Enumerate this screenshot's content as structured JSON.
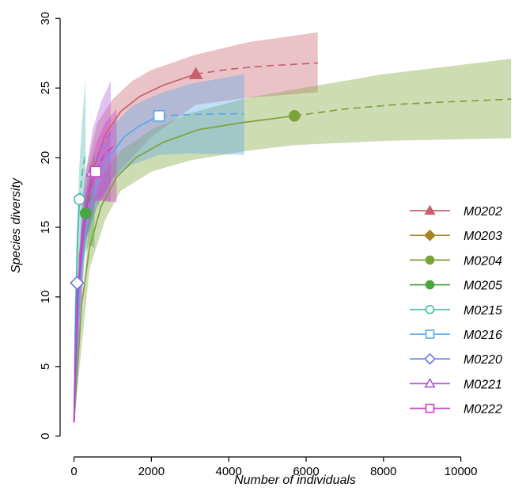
{
  "chart_data": {
    "type": "line",
    "title": "",
    "xlabel": "Number of individuals",
    "ylabel": "Species diversity",
    "xlim": [
      -400,
      11500
    ],
    "ylim": [
      -0.3,
      30.3
    ],
    "x_ticks": [
      0,
      2000,
      4000,
      6000,
      8000,
      10000
    ],
    "y_ticks": [
      0,
      5,
      10,
      15,
      20,
      25,
      30
    ],
    "grid": false,
    "legend_position": "right",
    "series": [
      {
        "name": "M0202",
        "color": "#c9606e",
        "marker": "triangle-filled",
        "observed": {
          "x": 3150,
          "y": 26
        },
        "interpolated": [
          [
            0,
            1
          ],
          [
            150,
            13
          ],
          [
            300,
            16.5
          ],
          [
            500,
            19.2
          ],
          [
            800,
            21.6
          ],
          [
            1200,
            23.3
          ],
          [
            1700,
            24.4
          ],
          [
            2300,
            25.2
          ],
          [
            3150,
            26
          ]
        ],
        "extrapolated": [
          [
            3150,
            26
          ],
          [
            4000,
            26.35
          ],
          [
            5000,
            26.6
          ],
          [
            6300,
            26.8
          ]
        ],
        "band": {
          "x": [
            0,
            300,
            600,
            1000,
            1500,
            2000,
            3150,
            4500,
            6300
          ],
          "lower": [
            1,
            14,
            16.5,
            18.5,
            20,
            21.5,
            23.8,
            24.3,
            24.7
          ],
          "upper": [
            1,
            19,
            22.5,
            24.2,
            25.5,
            26.3,
            27.4,
            28.3,
            29
          ]
        }
      },
      {
        "name": "M0203",
        "color": "#a88328",
        "marker": "diamond-filled",
        "observed": null,
        "interpolated": [],
        "extrapolated": [],
        "band": null
      },
      {
        "name": "M0204",
        "color": "#7ea23a",
        "marker": "circle-filled",
        "observed": {
          "x": 5700,
          "y": 23
        },
        "interpolated": [
          [
            0,
            1
          ],
          [
            200,
            9.5
          ],
          [
            400,
            13.5
          ],
          [
            700,
            16.5
          ],
          [
            1100,
            18.6
          ],
          [
            1600,
            20
          ],
          [
            2300,
            21.1
          ],
          [
            3200,
            22
          ],
          [
            4300,
            22.5
          ],
          [
            5700,
            23
          ]
        ],
        "extrapolated": [
          [
            5700,
            23
          ],
          [
            7000,
            23.5
          ],
          [
            8500,
            23.85
          ],
          [
            10000,
            24.05
          ],
          [
            11300,
            24.2
          ]
        ],
        "band": {
          "x": [
            0,
            400,
            800,
            1200,
            2000,
            3000,
            4500,
            5700,
            8000,
            11300
          ],
          "lower": [
            1,
            12,
            15.5,
            17.6,
            19,
            19.8,
            20.5,
            20.9,
            21.2,
            21.4
          ],
          "upper": [
            1,
            16,
            19,
            20.5,
            22,
            23.2,
            24.3,
            24.9,
            26,
            27.1
          ]
        }
      },
      {
        "name": "M0205",
        "color": "#4aa640",
        "marker": "circle-filled",
        "observed": {
          "x": 300,
          "y": 16
        },
        "interpolated": [
          [
            0,
            1
          ],
          [
            60,
            7
          ],
          [
            130,
            11
          ],
          [
            200,
            13.6
          ],
          [
            300,
            16
          ]
        ],
        "extrapolated": [
          [
            300,
            16
          ],
          [
            400,
            17
          ],
          [
            530,
            17.6
          ]
        ],
        "band": {
          "x": [
            0,
            120,
            250,
            400,
            530
          ],
          "lower": [
            1,
            9,
            13,
            13.8,
            13.5
          ],
          "upper": [
            1,
            13,
            17,
            19.5,
            20.5
          ]
        }
      },
      {
        "name": "M0215",
        "color": "#4ab7aa",
        "marker": "circle-open",
        "observed": {
          "x": 140,
          "y": 17
        },
        "interpolated": [
          [
            0,
            1
          ],
          [
            40,
            9
          ],
          [
            90,
            14
          ],
          [
            140,
            17
          ]
        ],
        "extrapolated": [
          [
            140,
            17
          ],
          [
            220,
            19
          ],
          [
            300,
            20.4
          ]
        ],
        "band": {
          "x": [
            0,
            60,
            140,
            220,
            300
          ],
          "lower": [
            1,
            8,
            13,
            15,
            16.3
          ],
          "upper": [
            1,
            14,
            19.5,
            23,
            25.7
          ]
        }
      },
      {
        "name": "M0216",
        "color": "#5aa8e8",
        "marker": "square-open",
        "observed": {
          "x": 2200,
          "y": 23
        },
        "interpolated": [
          [
            0,
            1
          ],
          [
            150,
            11
          ],
          [
            350,
            15.5
          ],
          [
            600,
            18.3
          ],
          [
            900,
            20
          ],
          [
            1300,
            21.5
          ],
          [
            1700,
            22.3
          ],
          [
            2200,
            23
          ]
        ],
        "extrapolated": [
          [
            2200,
            23
          ],
          [
            3000,
            23.1
          ],
          [
            3800,
            23.15
          ],
          [
            4400,
            23.15
          ]
        ],
        "band": {
          "x": [
            0,
            300,
            600,
            1000,
            1500,
            2200,
            3000,
            4400
          ],
          "lower": [
            1,
            14,
            16.5,
            18.5,
            19.5,
            20.2,
            20.3,
            20.2
          ],
          "upper": [
            1,
            17,
            20,
            22.3,
            23.7,
            24.6,
            25.3,
            26
          ]
        }
      },
      {
        "name": "M0220",
        "color": "#6a78e0",
        "marker": "diamond-open",
        "observed": {
          "x": 80,
          "y": 11
        },
        "interpolated": [
          [
            0,
            1
          ],
          [
            30,
            6.5
          ],
          [
            80,
            11
          ]
        ],
        "extrapolated": [],
        "band": null
      },
      {
        "name": "M0221",
        "color": "#b35ad8",
        "marker": "triangle-open",
        "observed": {
          "x": 480,
          "y": 19
        },
        "interpolated": [
          [
            0,
            1
          ],
          [
            80,
            9.5
          ],
          [
            200,
            14.5
          ],
          [
            330,
            17.2
          ],
          [
            480,
            19
          ]
        ],
        "extrapolated": [
          [
            480,
            19
          ],
          [
            650,
            20.5
          ],
          [
            800,
            21.3
          ],
          [
            950,
            21.8
          ]
        ],
        "band": {
          "x": [
            0,
            200,
            480,
            700,
            950
          ],
          "lower": [
            1,
            12,
            16.8,
            16.9,
            16.8
          ],
          "upper": [
            1,
            17,
            22,
            24,
            25.5
          ]
        }
      },
      {
        "name": "M0222",
        "color": "#cc3fbf",
        "marker": "square-open",
        "observed": {
          "x": 560,
          "y": 19
        },
        "interpolated": [
          [
            0,
            1
          ],
          [
            100,
            10
          ],
          [
            250,
            15
          ],
          [
            400,
            17.6
          ],
          [
            560,
            19
          ]
        ],
        "extrapolated": [
          [
            560,
            19
          ],
          [
            800,
            20.3
          ],
          [
            1100,
            21
          ]
        ],
        "band": {
          "x": [
            0,
            250,
            560,
            800,
            1100
          ],
          "lower": [
            1,
            13.5,
            17,
            16.9,
            16.8
          ],
          "upper": [
            1,
            16.5,
            21,
            22.5,
            23.5
          ]
        }
      }
    ]
  }
}
